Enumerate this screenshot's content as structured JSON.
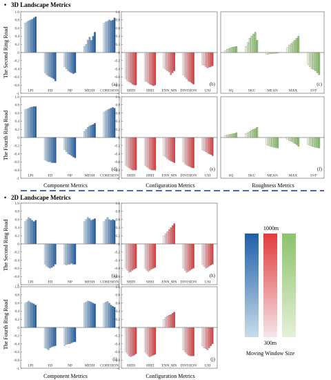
{
  "sections": [
    {
      "bullet": "•",
      "title": "3D Landscape Metrics"
    },
    {
      "bullet": "•",
      "title": "2D Landscape Metrics"
    }
  ],
  "row_labels": [
    "The Second Ring Road",
    "The Fourth Ring Road",
    "The Second Ring Road",
    "The Fourth Ring Road"
  ],
  "column_xlabels": {
    "3d": [
      "Component Metrics",
      "Configuration Metrics",
      "Roughness Metrics"
    ],
    "2d": [
      "Component Metrics",
      "Configuration Metrics"
    ]
  },
  "legend": {
    "top_label": "1000m",
    "bottom_label": "300m",
    "caption": "Moving Window Size",
    "colors": {
      "blue": [
        "#c8dcea",
        "#1f5fa8"
      ],
      "red": [
        "#f4e6ea",
        "#e23b3b"
      ],
      "green": [
        "#e6f0d8",
        "#8cc36a"
      ]
    }
  },
  "colors": {
    "divider": "#4a66c0"
  },
  "chart_data": [
    {
      "id": "a",
      "type": "bar",
      "palette": "blue",
      "ylim": [
        -1,
        1
      ],
      "yticks": [
        -1,
        -0.8,
        -0.6,
        -0.4,
        -0.2,
        0,
        0.2,
        0.4,
        0.6,
        0.8,
        1.0
      ],
      "categories": [
        "LPI",
        "ED",
        "NP",
        "MESH",
        "COHESION"
      ],
      "values": [
        [
          0.72,
          0.75,
          0.78,
          0.8,
          0.82,
          0.85,
          0.88
        ],
        [
          -0.5,
          -0.55,
          -0.58,
          -0.6,
          -0.62,
          -0.65,
          -0.7
        ],
        [
          -0.35,
          -0.4,
          -0.45,
          -0.48,
          -0.5,
          -0.52,
          -0.5
        ],
        [
          0.15,
          0.2,
          0.3,
          0.38,
          0.3,
          0.4,
          0.5
        ],
        [
          0.72,
          0.75,
          0.77,
          0.8,
          0.78,
          0.8,
          0.85
        ]
      ]
    },
    {
      "id": "b",
      "type": "bar",
      "palette": "red",
      "ylim": [
        -1,
        1
      ],
      "yticks": [
        -1,
        -0.8,
        -0.6,
        -0.4,
        -0.2,
        0,
        0.2,
        0.4,
        0.6,
        0.8,
        1.0
      ],
      "categories": [
        "SHDI",
        "SHEI",
        "ENN_MN",
        "DIVISION",
        "USI"
      ],
      "values": [
        [
          -0.65,
          -0.7,
          -0.72,
          -0.75,
          -0.78,
          -0.8,
          -0.8
        ],
        [
          -0.7,
          -0.72,
          -0.75,
          -0.78,
          -0.8,
          -0.82,
          -0.8
        ],
        [
          -0.38,
          -0.42,
          -0.45,
          -0.48,
          -0.55,
          -0.5,
          -0.45
        ],
        [
          -0.55,
          -0.6,
          -0.65,
          -0.7,
          -0.72,
          -0.75,
          -0.78
        ],
        [
          -0.3,
          -0.32,
          -0.35,
          -0.38,
          -0.36,
          -0.35,
          -0.33
        ]
      ]
    },
    {
      "id": "c",
      "type": "bar",
      "palette": "green",
      "ylim": [
        -1,
        1
      ],
      "yticks": [],
      "categories": [
        "SQ",
        "SKU",
        "MEAN",
        "MAX",
        "SVF"
      ],
      "values": [
        [
          0.05,
          0.08,
          0.1,
          0.12,
          0.13,
          0.14,
          0.15
        ],
        [
          0.15,
          0.25,
          0.35,
          0.4,
          0.45,
          0.5,
          0.3
        ],
        [
          -0.05,
          -0.04,
          -0.03,
          -0.03,
          -0.02,
          -0.02,
          -0.01
        ],
        [
          0.12,
          0.18,
          0.22,
          0.26,
          0.3,
          0.35,
          0.4
        ],
        [
          -0.3,
          -0.35,
          -0.4,
          -0.42,
          -0.45,
          -0.5,
          -0.55
        ]
      ]
    },
    {
      "id": "d",
      "type": "bar",
      "palette": "blue",
      "ylim": [
        -1,
        1
      ],
      "yticks": [
        -1,
        -0.8,
        -0.6,
        -0.4,
        -0.2,
        0,
        0.2,
        0.4,
        0.6,
        0.8,
        1.0
      ],
      "categories": [
        "LPI",
        "ED",
        "NP",
        "MESH",
        "COHESION"
      ],
      "values": [
        [
          0.68,
          0.7,
          0.72,
          0.74,
          0.75,
          0.76,
          0.76
        ],
        [
          -0.55,
          -0.58,
          -0.6,
          -0.6,
          -0.62,
          -0.62,
          -0.62
        ],
        [
          -0.3,
          -0.35,
          -0.4,
          -0.42,
          -0.45,
          -0.48,
          -0.5
        ],
        [
          0.15,
          0.2,
          0.25,
          0.28,
          0.3,
          0.32,
          0.35
        ],
        [
          0.62,
          0.65,
          0.68,
          0.7,
          0.72,
          0.74,
          0.72
        ]
      ]
    },
    {
      "id": "e",
      "type": "bar",
      "palette": "red",
      "ylim": [
        -1,
        1
      ],
      "yticks": [
        -1,
        -0.8,
        -0.6,
        -0.4,
        -0.2,
        0,
        0.2,
        0.4,
        0.6,
        0.8,
        1.0
      ],
      "categories": [
        "SHDI",
        "SHEI",
        "ENN_MN",
        "DIVISION",
        "USI"
      ],
      "values": [
        [
          -0.68,
          -0.72,
          -0.75,
          -0.78,
          -0.8,
          -0.8,
          -0.8
        ],
        [
          -0.68,
          -0.72,
          -0.75,
          -0.78,
          -0.8,
          -0.8,
          -0.8
        ],
        [
          -0.45,
          -0.48,
          -0.52,
          -0.55,
          -0.58,
          -0.6,
          -0.62
        ],
        [
          -0.6,
          -0.65,
          -0.68,
          -0.7,
          -0.72,
          -0.74,
          -0.75
        ],
        [
          -0.3,
          -0.33,
          -0.35,
          -0.38,
          -0.4,
          -0.42,
          -0.45
        ]
      ]
    },
    {
      "id": "f",
      "type": "bar",
      "palette": "green",
      "ylim": [
        -1,
        1
      ],
      "yticks": [],
      "categories": [
        "SQ",
        "SKU",
        "MEAN",
        "MAX",
        "SVF"
      ],
      "values": [
        [
          0.05,
          0.06,
          0.07,
          0.08,
          0.09,
          0.1,
          0.12
        ],
        [
          0.1,
          0.12,
          0.15,
          0.18,
          0.2,
          0.22,
          0.25
        ],
        [
          -0.18,
          -0.2,
          -0.22,
          -0.23,
          -0.24,
          -0.25,
          -0.26
        ],
        [
          -0.05,
          -0.08,
          -0.1,
          -0.12,
          -0.15,
          -0.18,
          -0.22
        ],
        [
          -0.18,
          -0.2,
          -0.22,
          -0.23,
          -0.24,
          -0.25,
          -0.26
        ]
      ]
    },
    {
      "id": "g",
      "type": "bar",
      "palette": "blue",
      "ylim": [
        -1,
        1
      ],
      "yticks": [
        -1,
        -0.8,
        -0.6,
        -0.4,
        -0.2,
        0,
        0.2,
        0.4,
        0.6,
        0.8,
        1.0
      ],
      "categories": [
        "LPI",
        "ED",
        "NP",
        "MESH",
        "COHESION"
      ],
      "values": [
        [
          0.55,
          0.6,
          0.65,
          0.62,
          0.58,
          0.55,
          0.58
        ],
        [
          -0.5,
          -0.55,
          -0.58,
          -0.6,
          -0.58,
          -0.55,
          -0.5
        ],
        [
          -0.5,
          -0.52,
          -0.5,
          -0.5,
          -0.48,
          -0.5,
          -0.5
        ],
        [
          0.55,
          0.6,
          0.65,
          0.62,
          0.58,
          0.6,
          0.62
        ],
        [
          0.55,
          0.6,
          0.65,
          0.6,
          0.58,
          0.6,
          0.58
        ]
      ]
    },
    {
      "id": "h",
      "type": "bar",
      "palette": "red",
      "ylim": [
        -1,
        1
      ],
      "yticks": [
        -1,
        -0.8,
        -0.6,
        -0.4,
        -0.2,
        0,
        0.2,
        0.4,
        0.6,
        0.8,
        1.0
      ],
      "categories": [
        "SHDI",
        "SHEI",
        "ENN_MN",
        "DIVISION",
        "USI"
      ],
      "values": [
        [
          -0.6,
          -0.65,
          -0.7,
          -0.68,
          -0.65,
          -0.62,
          -0.6
        ],
        [
          -0.6,
          -0.65,
          -0.68,
          -0.65,
          -0.62,
          -0.6,
          -0.58
        ],
        [
          0.2,
          0.25,
          0.3,
          0.35,
          0.4,
          0.45,
          0.5
        ],
        [
          -0.6,
          -0.65,
          -0.7,
          -0.68,
          -0.65,
          -0.62,
          -0.6
        ],
        [
          -0.5,
          -0.55,
          -0.6,
          -0.58,
          -0.55,
          -0.52,
          -0.5
        ]
      ]
    },
    {
      "id": "i",
      "type": "bar",
      "palette": "blue",
      "ylim": [
        -1,
        1
      ],
      "yticks": [
        -1,
        -0.8,
        -0.6,
        -0.4,
        -0.2,
        0,
        0.2,
        0.4,
        0.6,
        0.8,
        1.0
      ],
      "categories": [
        "LPI",
        "ED",
        "NP",
        "MESH",
        "COHESION"
      ],
      "values": [
        [
          0.6,
          0.62,
          0.65,
          0.62,
          0.6,
          0.58,
          0.55
        ],
        [
          -0.5,
          -0.52,
          -0.55,
          -0.5,
          -0.48,
          -0.46,
          -0.45
        ],
        [
          -0.45,
          -0.42,
          -0.4,
          -0.4,
          -0.38,
          -0.36,
          -0.35
        ],
        [
          0.6,
          0.62,
          0.65,
          0.64,
          0.62,
          0.6,
          0.58
        ],
        [
          0.6,
          0.62,
          0.64,
          0.6,
          0.55,
          0.52,
          0.5
        ]
      ]
    },
    {
      "id": "j",
      "type": "bar",
      "palette": "red",
      "ylim": [
        -1,
        1
      ],
      "yticks": [
        -1,
        -0.8,
        -0.6,
        -0.4,
        -0.2,
        0,
        0.2,
        0.4,
        0.6,
        0.8,
        1.0
      ],
      "categories": [
        "SHDI",
        "SHEI",
        "ENN_MN",
        "DIVISION",
        "USI"
      ],
      "values": [
        [
          -0.6,
          -0.65,
          -0.7,
          -0.72,
          -0.7,
          -0.68,
          -0.65
        ],
        [
          -0.6,
          -0.65,
          -0.7,
          -0.72,
          -0.7,
          -0.68,
          -0.66
        ],
        [
          0.2,
          0.25,
          0.28,
          0.3,
          0.32,
          0.35,
          0.38
        ],
        [
          -0.55,
          -0.6,
          -0.65,
          -0.68,
          -0.7,
          -0.7,
          -0.7
        ],
        [
          -0.45,
          -0.5,
          -0.52,
          -0.55,
          -0.5,
          -0.45,
          -0.4
        ]
      ]
    }
  ]
}
